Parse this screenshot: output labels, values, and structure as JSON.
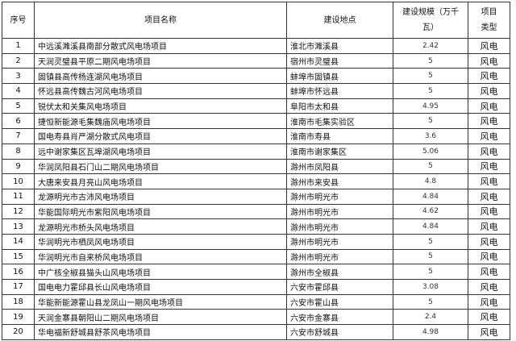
{
  "headers": {
    "no": "序号",
    "name": "项目名称",
    "location": "建设地点",
    "scale": "建设规模（万千瓦）",
    "type": "项目类型"
  },
  "rows": [
    {
      "no": "1",
      "name": "中远溪濉溪县南部分散式风电场项目",
      "location": "淮北市濉溪县",
      "scale": "2.42",
      "type": "风电"
    },
    {
      "no": "2",
      "name": "天润灵璧县平原二期风电场项目",
      "location": "宿州市灵璧县",
      "scale": "5",
      "type": "风电"
    },
    {
      "no": "3",
      "name": "固镇县高传杨连湖风电场项目",
      "location": "蚌埠市固镇县",
      "scale": "5",
      "type": "风电"
    },
    {
      "no": "4",
      "name": "怀远县高传魏古河风电场项目",
      "location": "蚌埠市怀远县",
      "scale": "5",
      "type": "风电"
    },
    {
      "no": "5",
      "name": "锐伏太和关集风电场项目",
      "location": "阜阳市太和县",
      "scale": "4.95",
      "type": "风电"
    },
    {
      "no": "6",
      "name": "捷恒新能源毛集魏庙风电场项目",
      "location": "淮南市毛集实验区",
      "scale": "5",
      "type": "风电"
    },
    {
      "no": "7",
      "name": "国电寿县肖严湖分散式风电项目",
      "location": "淮南市寿县",
      "scale": "3.6",
      "type": "风电"
    },
    {
      "no": "8",
      "name": "远中谢家集区瓦埠湖风电场项目",
      "location": "淮南市谢家集区",
      "scale": "5.06",
      "type": "风电"
    },
    {
      "no": "9",
      "name": "华润凤阳县石门山二期风电场项目",
      "location": "滁州市凤阳县",
      "scale": "5",
      "type": "风电"
    },
    {
      "no": "10",
      "name": "大唐来安县月亮山风电场项目",
      "location": "滁州市来安县",
      "scale": "4.8",
      "type": "风电"
    },
    {
      "no": "11",
      "name": "龙源明光市古沛风电场项目",
      "location": "滁州市明光市",
      "scale": "4.84",
      "type": "风电"
    },
    {
      "no": "12",
      "name": "华能国际明光市紫阳风电场项目",
      "location": "滁州市明光市",
      "scale": "4.62",
      "type": "风电"
    },
    {
      "no": "13",
      "name": "龙源明光市桥头风电场项目",
      "location": "滁州市明光市",
      "scale": "4.84",
      "type": "风电"
    },
    {
      "no": "14",
      "name": "华润明光市栖凤风电场项目",
      "location": "滁州市明光市",
      "scale": "5",
      "type": "风电"
    },
    {
      "no": "15",
      "name": "华润明光市自来桥风电场项目",
      "location": "滁州市明光市",
      "scale": "5",
      "type": "风电"
    },
    {
      "no": "16",
      "name": "中广核全椒县猫头山风电场项目",
      "location": "滁州市全椒县",
      "scale": "5",
      "type": "风电"
    },
    {
      "no": "17",
      "name": "国电电力霍邱县长山风电场项目",
      "location": "六安市霍邱县",
      "scale": "3.08",
      "type": "风电"
    },
    {
      "no": "18",
      "name": "华能新能源霍山县龙凤山一期风电场项目",
      "location": "六安市霍山县",
      "scale": "5",
      "type": "风电"
    },
    {
      "no": "19",
      "name": "天润金寨县朝阳山二期风电场项目",
      "location": "六安市金寨县",
      "scale": "2.4",
      "type": "风电"
    },
    {
      "no": "20",
      "name": "华电福新舒城县舒茶风电场项目",
      "location": "六安市舒城县",
      "scale": "4.98",
      "type": "风电"
    }
  ]
}
